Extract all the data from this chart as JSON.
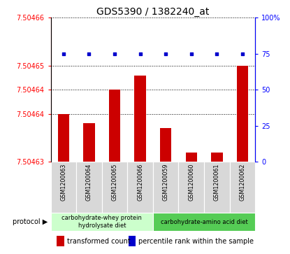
{
  "title": "GDS5390 / 1382240_at",
  "samples": [
    "GSM1200063",
    "GSM1200064",
    "GSM1200065",
    "GSM1200066",
    "GSM1200059",
    "GSM1200060",
    "GSM1200061",
    "GSM1200062"
  ],
  "transformed_counts": [
    7.50464,
    7.504638,
    7.504645,
    7.504648,
    7.504637,
    7.504632,
    7.504632,
    7.50465
  ],
  "percentile_ranks": [
    75,
    75,
    75,
    75,
    75,
    75,
    75,
    75
  ],
  "ylim_left": [
    7.50463,
    7.50466
  ],
  "ylim_right": [
    0,
    100
  ],
  "left_ticks": [
    7.50463,
    7.50464,
    7.504645,
    7.50465,
    7.50466
  ],
  "left_tick_labels": [
    "7.50463",
    "7.50464",
    "7.50464",
    "7.50465",
    "7.50466"
  ],
  "right_ticks": [
    0,
    25,
    50,
    75,
    100
  ],
  "bar_color": "#cc0000",
  "dot_color": "#0000cc",
  "sample_box_color": "#d8d8d8",
  "protocol_groups": [
    {
      "label": "carbohydrate-whey protein\nhydrolysate diet",
      "start": 0,
      "end": 4,
      "color": "#ccffcc"
    },
    {
      "label": "carbohydrate-amino acid diet",
      "start": 4,
      "end": 8,
      "color": "#55cc55"
    }
  ],
  "legend_items": [
    {
      "color": "#cc0000",
      "label": "transformed count"
    },
    {
      "color": "#0000cc",
      "label": "percentile rank within the sample"
    }
  ],
  "title_fontsize": 10,
  "tick_fontsize": 7,
  "sample_fontsize": 5.8,
  "proto_fontsize": 6,
  "legend_fontsize": 7
}
